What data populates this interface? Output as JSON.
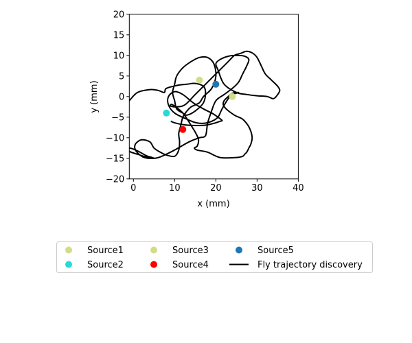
{
  "chart_data": {
    "type": "scatter",
    "xlabel": "x (mm)",
    "ylabel": "y (mm)",
    "xlim": [
      -1,
      40
    ],
    "ylim": [
      -20,
      20
    ],
    "x_ticks": [
      0,
      10,
      20,
      30,
      40
    ],
    "y_ticks": [
      -20,
      -15,
      -10,
      -5,
      0,
      5,
      10,
      15,
      20
    ],
    "x_tick_labels": [
      "0",
      "10",
      "20",
      "30",
      "40"
    ],
    "y_tick_labels": [
      "−20",
      "−15",
      "−10",
      "−5",
      "0",
      "5",
      "10",
      "15",
      "20"
    ],
    "grid": false,
    "legend_placement": "below",
    "sources": [
      {
        "name": "Source1",
        "x": 16,
        "y": 4,
        "color": "#d4dc88"
      },
      {
        "name": "Source2",
        "x": 8,
        "y": -4,
        "color": "#2ad8d8"
      },
      {
        "name": "Source3",
        "x": 24,
        "y": 0,
        "color": "#d4dc88"
      },
      {
        "name": "Source4",
        "x": 12,
        "y": -8,
        "color": "#ff0000"
      },
      {
        "name": "Source5",
        "x": 20,
        "y": 3,
        "color": "#1f77b4"
      }
    ],
    "trajectory": {
      "name": "Fly trajectory discovery",
      "color": "#000000",
      "x": [
        -1,
        1,
        4,
        6,
        7.5,
        8,
        11,
        13,
        15,
        17,
        17.5,
        17,
        15,
        13,
        12,
        10.5,
        10,
        9.5,
        10,
        10.5,
        12,
        14,
        16,
        18,
        19.5,
        20,
        19,
        17,
        16,
        14,
        13,
        12,
        11.5,
        11,
        11.2,
        11,
        10,
        8,
        6.5,
        5,
        4,
        2,
        0.5,
        0.5,
        2,
        3.5,
        4,
        5,
        4.5,
        3,
        1,
        -1,
        -1,
        1,
        5,
        9,
        13.5,
        16,
        17.5,
        18,
        18.8,
        20,
        22,
        24,
        25.5,
        26.5,
        27.5,
        28,
        27,
        25,
        23,
        21,
        20,
        20.5,
        22,
        25,
        27.5,
        30,
        32.5,
        34,
        35,
        35.5,
        35,
        33.5,
        32,
        31,
        30,
        29,
        27.5,
        26,
        24.5,
        23,
        21,
        18,
        15,
        12.5,
        10.5,
        9,
        9.5,
        12,
        14,
        15.2,
        15.8,
        15.5,
        14.8,
        15.5,
        18,
        21,
        25,
        26.5,
        27,
        27.5,
        28,
        28.5,
        28.8,
        28.5,
        27.8,
        26.5,
        24.5,
        22.5,
        21.8,
        22,
        23,
        24,
        25.5,
        24,
        23,
        21.5,
        20.5,
        19,
        17,
        15,
        13,
        10,
        8.5,
        8.5,
        10,
        12,
        14.5,
        17,
        19,
        20.5,
        21.5,
        21,
        19.5,
        17,
        14,
        12,
        10.5,
        9.5,
        9.2
      ],
      "y": [
        -1,
        1,
        1.7,
        1.5,
        1,
        2,
        2.8,
        3,
        3.2,
        2.5,
        1,
        -1.5,
        -3.5,
        -4.5,
        -4,
        -3,
        -1,
        1,
        3,
        5,
        7,
        8.5,
        9.5,
        9.5,
        8,
        5,
        2,
        0,
        -1.5,
        -2.5,
        -3.5,
        -5,
        -7,
        -9,
        -11,
        -13,
        -14.5,
        -14.2,
        -13.5,
        -12.5,
        -11,
        -10.5,
        -11.5,
        -13,
        -14.5,
        -15,
        -15,
        -15,
        -14.8,
        -14.3,
        -13.2,
        -12.5,
        -13.3,
        -14,
        -15,
        -13.5,
        -11,
        -10,
        -9.5,
        -6.5,
        -4,
        -1,
        0.5,
        2,
        3.5,
        5.5,
        7.5,
        9,
        9.8,
        10,
        9.8,
        9,
        8,
        6.5,
        3,
        1,
        0.5,
        0.2,
        0,
        -0.5,
        0.5,
        1.5,
        2.5,
        4,
        5.5,
        7.5,
        9.5,
        10.5,
        11,
        10.5,
        10,
        8.5,
        6.5,
        3.5,
        0.5,
        -2,
        -2.5,
        -2.3,
        -2,
        -4,
        -7,
        -9,
        -10.5,
        -12,
        -12.5,
        -13,
        -13.5,
        -14.8,
        -14.8,
        -14.5,
        -14,
        -13.5,
        -12.5,
        -11.5,
        -10,
        -8.5,
        -7,
        -5.5,
        -4.5,
        -3,
        -2,
        -1,
        0,
        0.8,
        1,
        0.5,
        -0.5,
        -3,
        -5,
        -6,
        -6.5,
        -6.3,
        -5.5,
        -4,
        -2,
        0,
        1.2,
        0.5,
        -1.5,
        -3,
        -4,
        -5,
        -5.8,
        -6,
        -6.5,
        -7,
        -7,
        -6.8,
        -6.5,
        -6.2,
        -6
      ]
    },
    "legend": [
      {
        "label": "Source1",
        "kind": "marker",
        "color": "#d4dc88"
      },
      {
        "label": "Source2",
        "kind": "marker",
        "color": "#2ad8d8"
      },
      {
        "label": "Source3",
        "kind": "marker",
        "color": "#d4dc88"
      },
      {
        "label": "Source4",
        "kind": "marker",
        "color": "#ff0000"
      },
      {
        "label": "Source5",
        "kind": "marker",
        "color": "#1f77b4"
      },
      {
        "label": "Fly trajectory discovery",
        "kind": "line",
        "color": "#000000"
      }
    ]
  }
}
